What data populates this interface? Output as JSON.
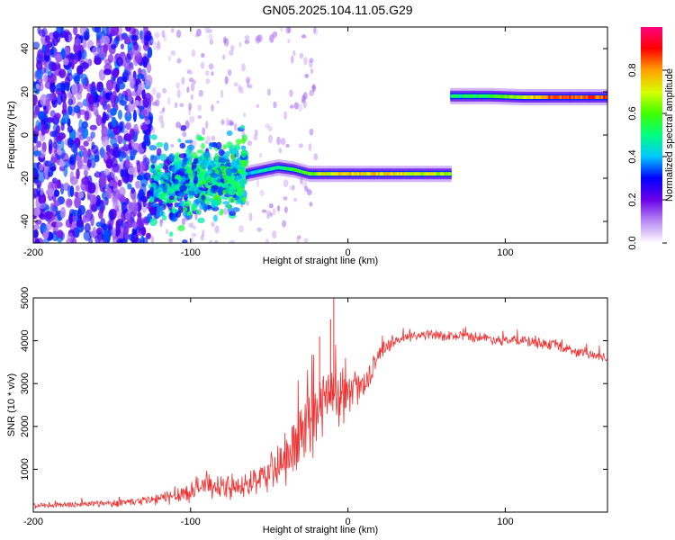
{
  "title": "GN05.2025.104.11.05.G29",
  "chart_data": [
    {
      "type": "heatmap",
      "xlabel": "Height of straight line (km)",
      "ylabel": "Frequency (Hz)",
      "xlim": [
        -200,
        165
      ],
      "ylim": [
        -50,
        50
      ],
      "xticks": [
        -200,
        -100,
        0,
        100
      ],
      "xtick_labels": [
        "-200",
        "-100",
        "0",
        "100"
      ],
      "yticks": [
        -40,
        -20,
        0,
        20,
        40
      ],
      "ytick_labels": [
        "-40",
        "-20",
        "0",
        "20",
        "40"
      ],
      "colorbar": {
        "label": "Normalized spectral amplitude",
        "range": [
          0,
          1
        ],
        "ticks": [
          0,
          0.2,
          0.4,
          0.6,
          0.8
        ],
        "tick_labels": [
          "0.0",
          "0.2",
          "0.4",
          "0.6",
          "0.8"
        ],
        "colors": [
          "#ffffff",
          "#b98cf4",
          "#6a00e8",
          "#0000ff",
          "#00c8ff",
          "#00ff80",
          "#40ff00",
          "#d8ff00",
          "#ffa000",
          "#ff0000",
          "#ff0080"
        ]
      },
      "features": [
        {
          "kind": "noise",
          "x_range": [
            -200,
            -125
          ],
          "y_range": [
            -50,
            50
          ],
          "intensity": 0.3
        },
        {
          "kind": "sparse_noise",
          "x_range": [
            -125,
            -20
          ],
          "y_range": [
            -50,
            50
          ],
          "intensity": 0.1
        },
        {
          "kind": "cluster",
          "x_range": [
            -125,
            -65
          ],
          "y_center": -25,
          "y_spread": 8,
          "intensity": 0.35
        },
        {
          "kind": "track",
          "x": [
            -65,
            -45,
            -35,
            -25,
            -15,
            0,
            20,
            40,
            65
          ],
          "y": [
            -18,
            -15,
            -16,
            -18,
            -18,
            -18,
            -18,
            -18,
            -18
          ],
          "intensity": [
            0.4,
            0.5,
            0.55,
            0.6,
            0.7,
            0.75,
            0.75,
            0.7,
            0.65
          ]
        },
        {
          "kind": "track",
          "x": [
            65,
            90,
            110,
            130,
            165
          ],
          "y": [
            18,
            18,
            17.5,
            17.5,
            17.5
          ],
          "intensity": [
            0.5,
            0.55,
            0.7,
            0.85,
            0.85
          ]
        }
      ]
    },
    {
      "type": "line",
      "xlabel": "Height of straight line (km)",
      "ylabel": "SNR (10 * v/v)",
      "xlim": [
        -200,
        165
      ],
      "ylim": [
        0,
        5000
      ],
      "xticks": [
        -200,
        -100,
        0,
        100
      ],
      "xtick_labels": [
        "-200",
        "-100",
        "0",
        "100"
      ],
      "yticks": [
        1000,
        2000,
        3000,
        4000,
        5000
      ],
      "ytick_labels": [
        "1000",
        "2000",
        "3000",
        "4000",
        "5000"
      ],
      "color": "#f03030",
      "series": [
        {
          "x": [
            -200,
            -180,
            -160,
            -140,
            -120,
            -110,
            -100,
            -90,
            -80,
            -70,
            -60,
            -50,
            -40,
            -30,
            -25,
            -20,
            -15,
            -10,
            -5,
            0,
            5,
            10,
            15,
            20,
            25,
            30,
            40,
            50,
            60,
            70,
            80,
            90,
            100,
            110,
            120,
            130,
            140,
            150,
            165
          ],
          "y": [
            150,
            170,
            200,
            230,
            300,
            400,
            500,
            650,
            600,
            550,
            700,
            900,
            1200,
            1700,
            2000,
            2300,
            2600,
            2600,
            2700,
            2700,
            2900,
            3000,
            3300,
            3700,
            3900,
            4000,
            4100,
            4150,
            4100,
            4100,
            4100,
            4050,
            4000,
            4000,
            3950,
            3900,
            3800,
            3700,
            3600
          ],
          "spread": [
            80,
            80,
            100,
            120,
            180,
            250,
            300,
            350,
            300,
            300,
            400,
            500,
            700,
            900,
            1000,
            1100,
            1200,
            1000,
            800,
            600,
            500,
            400,
            300,
            250,
            200,
            180,
            150,
            150,
            150,
            150,
            150,
            150,
            150,
            150,
            150,
            150,
            150,
            150,
            150
          ],
          "spikes": [
            {
              "x": -9,
              "y": 5000
            },
            {
              "x": -11,
              "y": 4500
            },
            {
              "x": -18,
              "y": 4100
            }
          ]
        }
      ]
    }
  ]
}
